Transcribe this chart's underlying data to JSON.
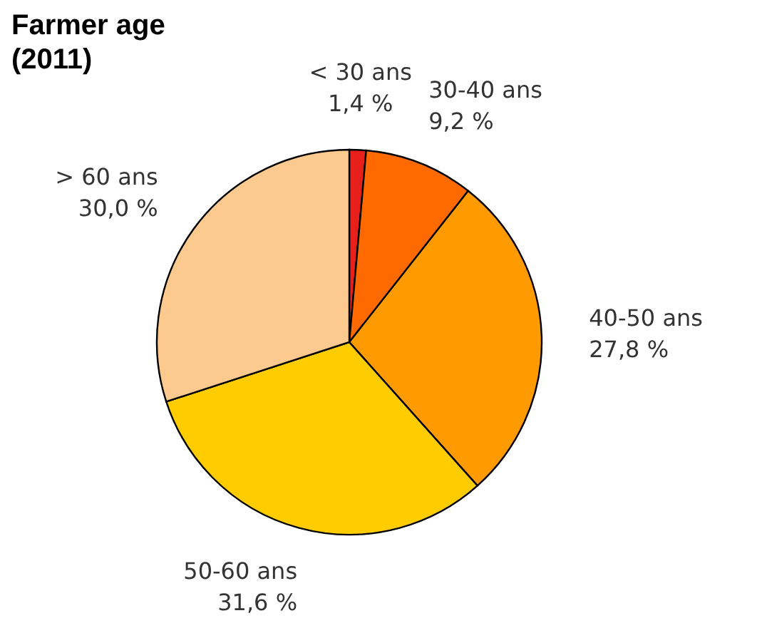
{
  "chart_data": {
    "type": "pie",
    "title": "Farmer age (2011)",
    "categories": [
      "< 30 ans",
      "30-40 ans",
      "40-50 ans",
      "50-60 ans",
      "> 60 ans"
    ],
    "values": [
      1.4,
      9.2,
      27.8,
      31.6,
      30.0
    ],
    "value_labels": [
      "1,4 %",
      "9,2 %",
      "27,8 %",
      "31,6 %",
      "30,0 %"
    ],
    "colors": [
      "#e8201c",
      "#ff6a00",
      "#ff9a00",
      "#ffcc00",
      "#fcc98e"
    ]
  }
}
